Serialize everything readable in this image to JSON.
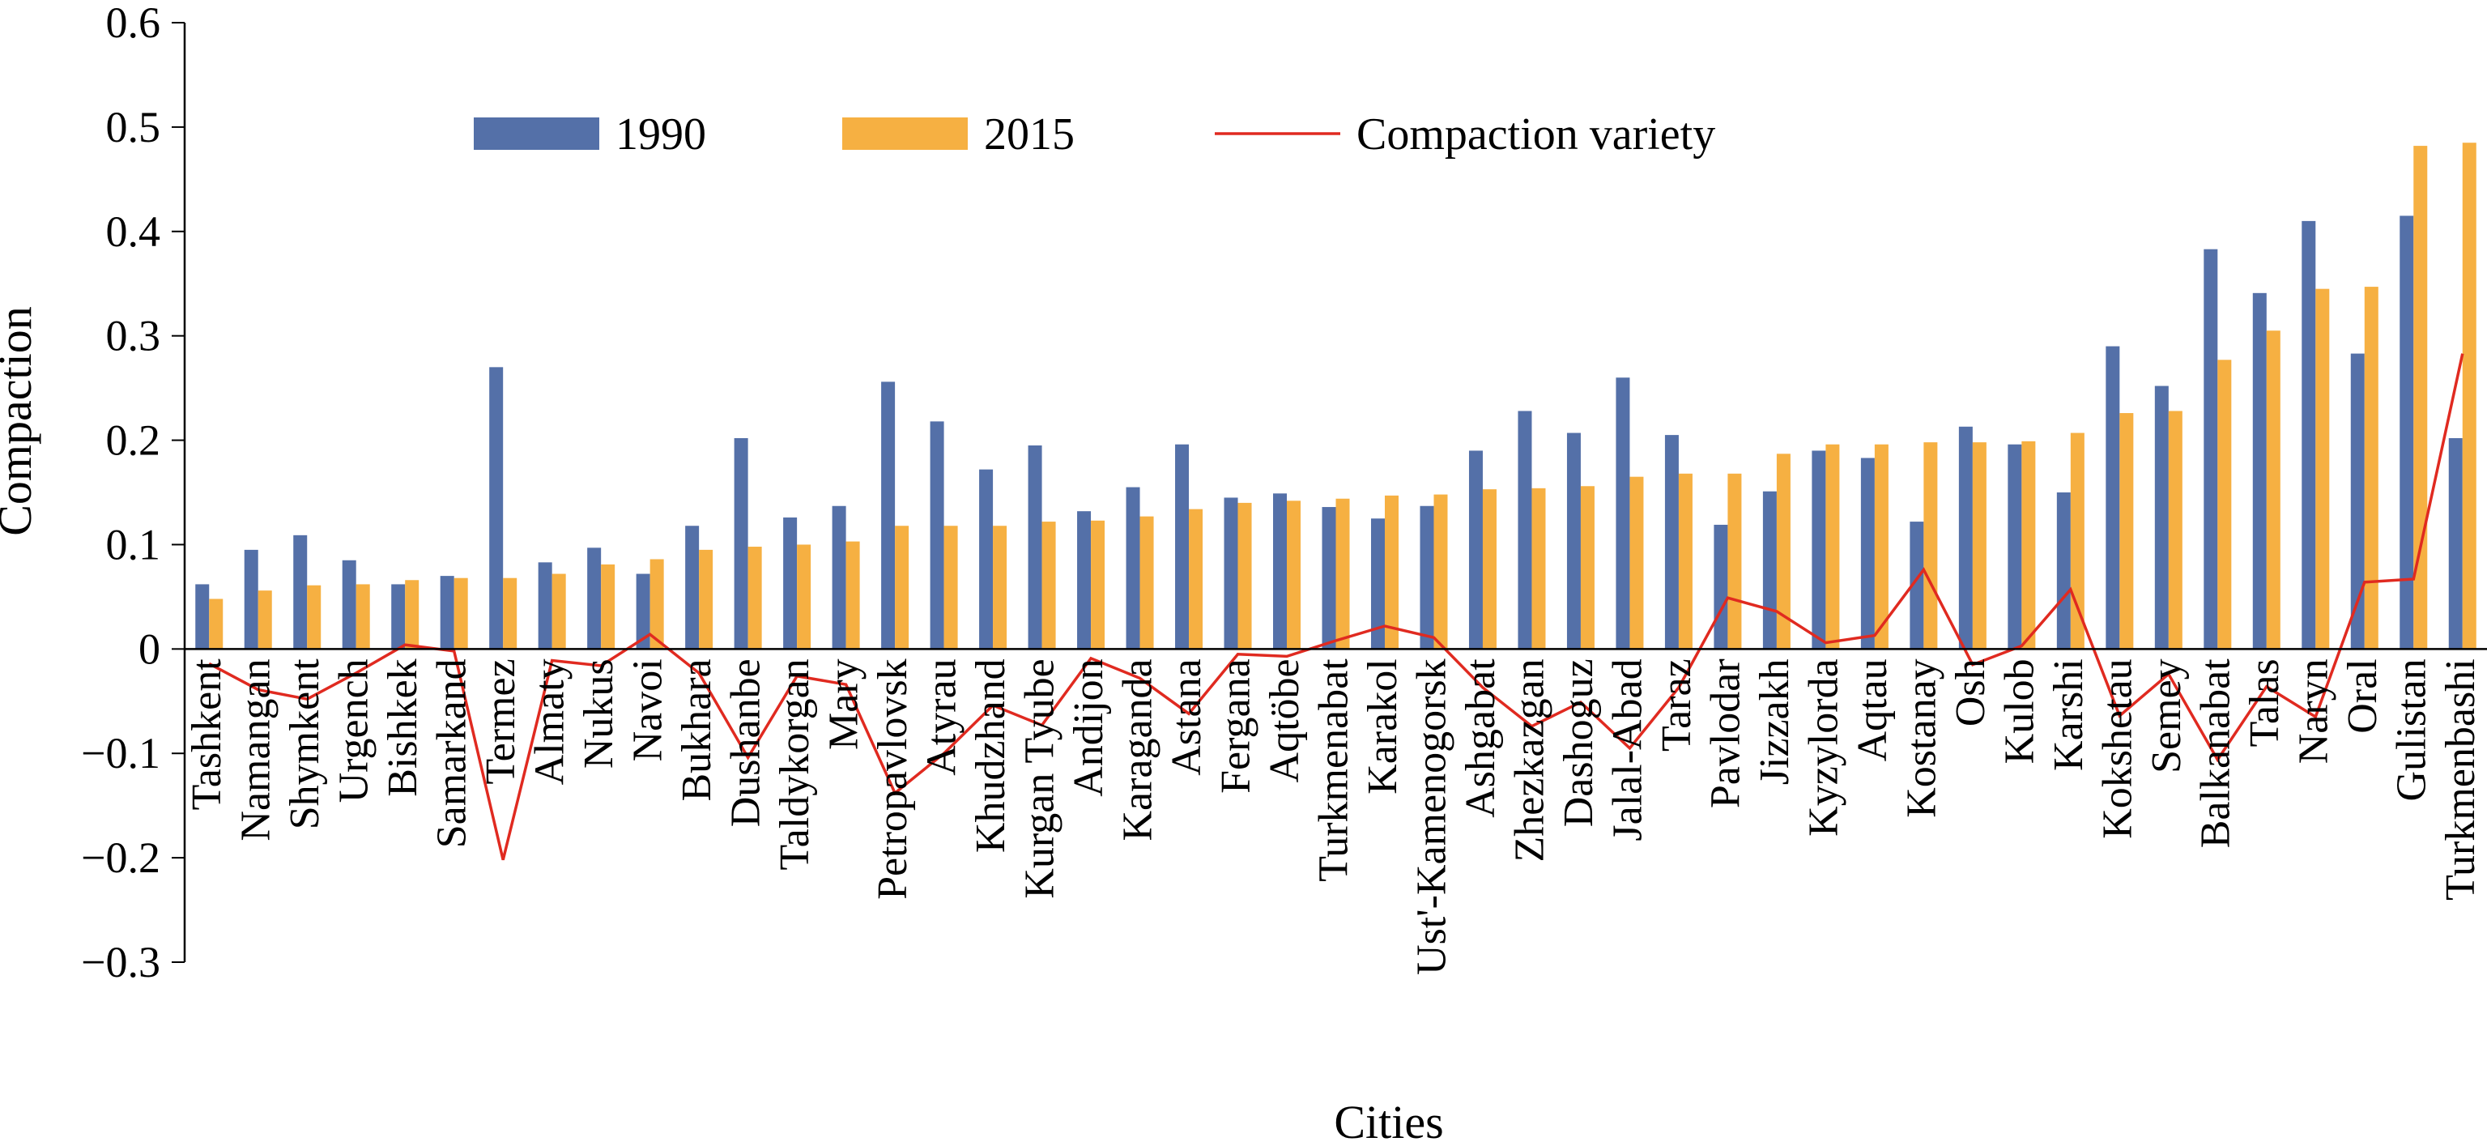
{
  "chart_data": {
    "type": "bar",
    "xlabel": "Cities",
    "ylabel": "Compaction",
    "ylim": [
      -0.3,
      0.6
    ],
    "yticks": [
      -0.3,
      -0.2,
      -0.1,
      0,
      0.1,
      0.2,
      0.3,
      0.4,
      0.5,
      0.6
    ],
    "ytick_labels": [
      "−0.3",
      "−0.2",
      "−0.1",
      "0",
      "0.1",
      "0.2",
      "0.3",
      "0.4",
      "0.5",
      "0.6"
    ],
    "grid": false,
    "legend_position": "top",
    "categories": [
      "Tashkent",
      "Namangan",
      "Shymkent",
      "Urgench",
      "Bishkek",
      "Samarkand",
      "Termez",
      "Almaty",
      "Nukus",
      "Navoi",
      "Bukhara",
      "Dushanbe",
      "Taldykorgan",
      "Mary",
      "Petropavlovsk",
      "Atyrau",
      "Khudzhand",
      "Kurgan Tyube",
      "Andijon",
      "Karaganda",
      "Astana",
      "Fergana",
      "Aqtöbe",
      "Turkmenabat",
      "Karakol",
      "Ust'-Kamenogorsk",
      "Ashgabat",
      "Zhezkazgan",
      "Dashoguz",
      "Jalal-Abad",
      "Taraz",
      "Pavlodar",
      "Jizzakh",
      "Kyzylorda",
      "Aqtau",
      "Kostanay",
      "Osh",
      "Kulob",
      "Karshi",
      "Kokshetau",
      "Semey",
      "Balkanabat",
      "Talas",
      "Naryn",
      "Oral",
      "Gulistan",
      "Turkmenbashi"
    ],
    "series": [
      {
        "name": "1990",
        "kind": "bar",
        "color": "#5470a8",
        "values": [
          0.062,
          0.095,
          0.109,
          0.085,
          0.062,
          0.07,
          0.27,
          0.083,
          0.097,
          0.072,
          0.118,
          0.202,
          0.126,
          0.137,
          0.256,
          0.218,
          0.172,
          0.195,
          0.132,
          0.155,
          0.196,
          0.145,
          0.149,
          0.136,
          0.125,
          0.137,
          0.19,
          0.228,
          0.207,
          0.26,
          0.205,
          0.119,
          0.151,
          0.19,
          0.183,
          0.122,
          0.213,
          0.196,
          0.15,
          0.29,
          0.252,
          0.383,
          0.341,
          0.41,
          0.283,
          0.415,
          0.202
        ]
      },
      {
        "name": "2015",
        "kind": "bar",
        "color": "#f6b042",
        "values": [
          0.048,
          0.056,
          0.061,
          0.062,
          0.066,
          0.068,
          0.068,
          0.072,
          0.081,
          0.086,
          0.095,
          0.098,
          0.1,
          0.103,
          0.118,
          0.118,
          0.118,
          0.122,
          0.123,
          0.127,
          0.134,
          0.14,
          0.142,
          0.144,
          0.147,
          0.148,
          0.153,
          0.154,
          0.156,
          0.165,
          0.168,
          0.168,
          0.187,
          0.196,
          0.196,
          0.198,
          0.198,
          0.199,
          0.207,
          0.226,
          0.228,
          0.277,
          0.305,
          0.345,
          0.347,
          0.482,
          0.485
        ]
      },
      {
        "name": "Compaction variety",
        "kind": "line",
        "color": "#e02a20",
        "values": [
          -0.014,
          -0.039,
          -0.048,
          -0.023,
          0.004,
          -0.002,
          -0.202,
          -0.011,
          -0.016,
          0.014,
          -0.023,
          -0.104,
          -0.026,
          -0.034,
          -0.138,
          -0.1,
          -0.054,
          -0.073,
          -0.009,
          -0.028,
          -0.062,
          -0.005,
          -0.007,
          0.008,
          0.022,
          0.011,
          -0.037,
          -0.074,
          -0.051,
          -0.095,
          -0.037,
          0.049,
          0.036,
          0.006,
          0.013,
          0.076,
          -0.015,
          0.003,
          0.057,
          -0.064,
          -0.024,
          -0.106,
          -0.036,
          -0.065,
          0.064,
          0.067,
          0.283
        ]
      }
    ]
  }
}
